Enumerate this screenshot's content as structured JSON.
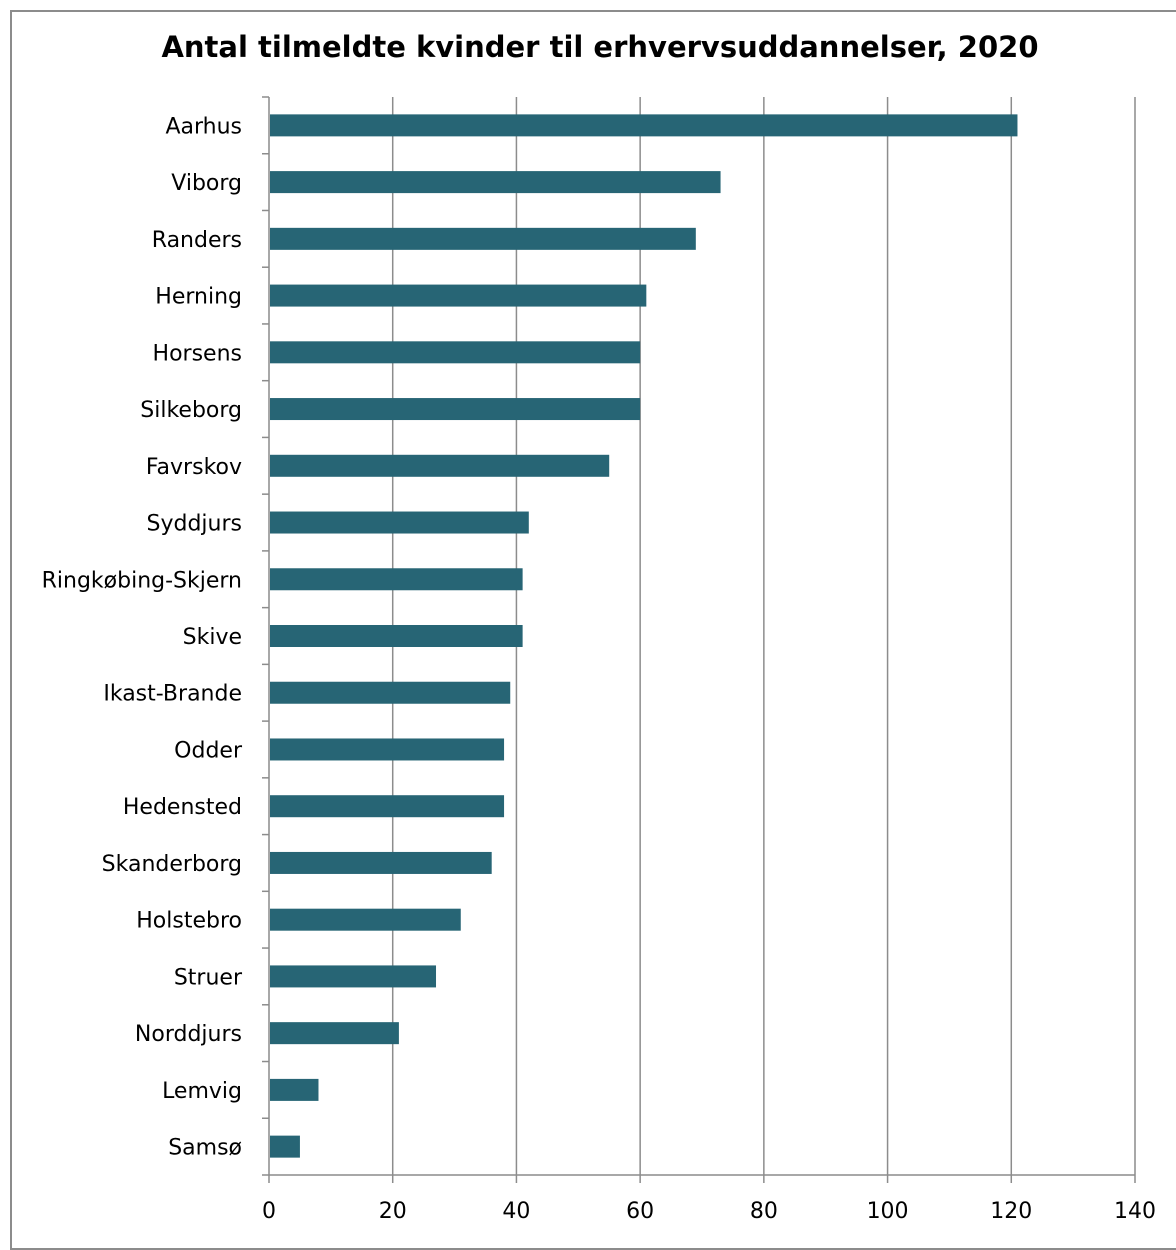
{
  "chart_data": {
    "type": "bar",
    "orientation": "horizontal",
    "title": "Antal tilmeldte kvinder til erhvervsuddannelser, 2020",
    "xlabel": "",
    "ylabel": "",
    "categories": [
      "Aarhus",
      "Viborg",
      "Randers",
      "Herning",
      "Horsens",
      "Silkeborg",
      "Favrskov",
      "Syddjurs",
      "Ringkøbing-Skjern",
      "Skive",
      "Ikast-Brande",
      "Odder",
      "Hedensted",
      "Skanderborg",
      "Holstebro",
      "Struer",
      "Norddjurs",
      "Lemvig",
      "Samsø"
    ],
    "values": [
      121,
      73,
      69,
      61,
      60,
      60,
      55,
      42,
      41,
      41,
      39,
      38,
      38,
      36,
      31,
      27,
      21,
      8,
      5
    ],
    "xlim": [
      0,
      140
    ],
    "xticks": [
      "0",
      "20",
      "40",
      "60",
      "80",
      "100",
      "120",
      "140"
    ],
    "grid": "vertical",
    "legend": "none",
    "bar_color": "#276575"
  }
}
